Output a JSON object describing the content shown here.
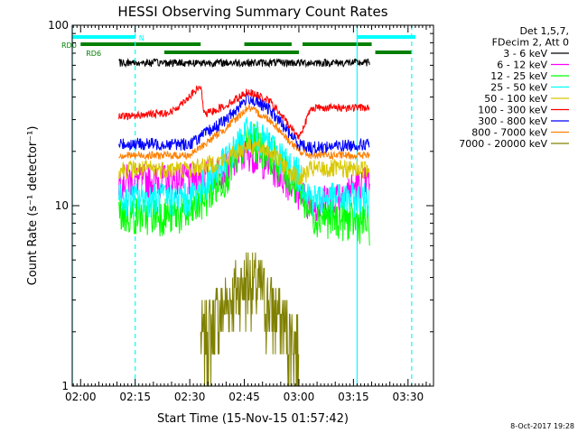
{
  "chart_data": {
    "type": "line",
    "title": "HESSI Observing Summary Count Rates",
    "xlabel": "Start Time (15-Nov-15 01:57:42)",
    "ylabel": "Count Rate (s⁻¹ detector⁻¹)",
    "y_scale": "log",
    "ylim": [
      1,
      100
    ],
    "xlim": [
      "01:57:42",
      "03:37:00"
    ],
    "x_ticks": [
      "02:00",
      "02:15",
      "02:30",
      "02:45",
      "03:00",
      "03:15",
      "03:30"
    ],
    "y_ticks": [
      "1",
      "10",
      "100"
    ],
    "legend_position": "top-right",
    "legend_header": [
      "Det 1,5,7,",
      "FDecim 2, Att 0"
    ],
    "series": [
      {
        "name": "3 - 6 keV",
        "color": "#000000",
        "x": [
          "02:10:30",
          "02:15",
          "02:30",
          "02:40",
          "02:50",
          "03:00",
          "03:10",
          "03:19:30"
        ],
        "values": [
          62,
          62,
          62,
          62,
          62,
          62,
          62,
          62
        ]
      },
      {
        "name": "6 - 12 keV",
        "color": "#ff00ff",
        "x": [
          "02:10:30",
          "02:30",
          "02:40",
          "02:46",
          "02:52",
          "03:00",
          "03:03:30",
          "03:19:30"
        ],
        "values": [
          14,
          14,
          16,
          20,
          17,
          12,
          10,
          14
        ]
      },
      {
        "name": "12 - 25 keV",
        "color": "#00ff00",
        "x": [
          "02:10:30",
          "02:30",
          "02:40",
          "02:46",
          "02:52",
          "03:00",
          "03:03:30",
          "03:19:30"
        ],
        "values": [
          9,
          9,
          15,
          24,
          20,
          13,
          9,
          8
        ]
      },
      {
        "name": "25 - 50 keV",
        "color": "#00ffff",
        "x": [
          "02:10:30",
          "02:30",
          "02:40",
          "02:46",
          "02:52",
          "03:00",
          "03:03:30",
          "03:19:30"
        ],
        "values": [
          11,
          11,
          18,
          26,
          22,
          15,
          11,
          11
        ]
      },
      {
        "name": "50 - 100 keV",
        "color": "#d8c800",
        "x": [
          "02:10:30",
          "02:30",
          "02:40",
          "02:46",
          "02:52",
          "03:00",
          "03:03:30",
          "03:19:30"
        ],
        "values": [
          16,
          16,
          18,
          22,
          20,
          14,
          16,
          16
        ]
      },
      {
        "name": "100 - 300 keV",
        "color": "#ff0000",
        "x": [
          "02:10:30",
          "02:25",
          "02:33",
          "02:34",
          "02:40",
          "02:46",
          "02:52",
          "03:00",
          "03:03:30",
          "03:19:30"
        ],
        "values": [
          31,
          33,
          46,
          32,
          36,
          43,
          38,
          24,
          35,
          35
        ]
      },
      {
        "name": "300 - 800 keV",
        "color": "#0000ff",
        "x": [
          "02:10:30",
          "02:30",
          "02:40",
          "02:46",
          "02:52",
          "03:00",
          "03:03:30",
          "03:19:30"
        ],
        "values": [
          22,
          22,
          30,
          40,
          34,
          22,
          21,
          22
        ]
      },
      {
        "name": "800 - 7000 keV",
        "color": "#ff8000",
        "x": [
          "02:10:30",
          "02:30",
          "02:40",
          "02:46",
          "02:52",
          "03:00",
          "03:03:30",
          "03:19:30"
        ],
        "values": [
          19,
          19,
          27,
          35,
          30,
          20,
          19,
          19
        ]
      },
      {
        "name": "7000 - 20000 keV",
        "color": "#808000",
        "x": [
          "02:33",
          "02:37",
          "02:42",
          "02:46",
          "02:50",
          "02:55",
          "03:00"
        ],
        "values": [
          1.8,
          2.4,
          3.3,
          4,
          3.4,
          2.4,
          1.7
        ]
      }
    ],
    "annotations": {
      "flags": [
        {
          "label": "N",
          "color": "#00ffff",
          "segments": [
            [
              "01:57:42",
              "02:15"
            ],
            [
              "03:16",
              "03:32"
            ]
          ]
        },
        {
          "label": "RD0",
          "color": "#008000",
          "segments": [
            [
              "02:00",
              "02:33"
            ],
            [
              "02:45",
              "02:58"
            ],
            [
              "03:01",
              "03:20"
            ]
          ]
        },
        {
          "label": "RD6",
          "color": "#008000",
          "segments": [
            [
              "02:23",
              "03:00"
            ],
            [
              "03:21",
              "03:31"
            ]
          ]
        }
      ],
      "vertical_lines": [
        {
          "x": "01:57:42",
          "style": "solid",
          "color": "#00ffff"
        },
        {
          "x": "02:15",
          "style": "dashed",
          "color": "#00ffff"
        },
        {
          "x": "03:16",
          "style": "solid",
          "color": "#00ffff"
        },
        {
          "x": "03:31",
          "style": "dashed",
          "color": "#00ffff"
        }
      ]
    }
  },
  "footer": {
    "timestamp": "8-Oct-2017 19:28"
  }
}
